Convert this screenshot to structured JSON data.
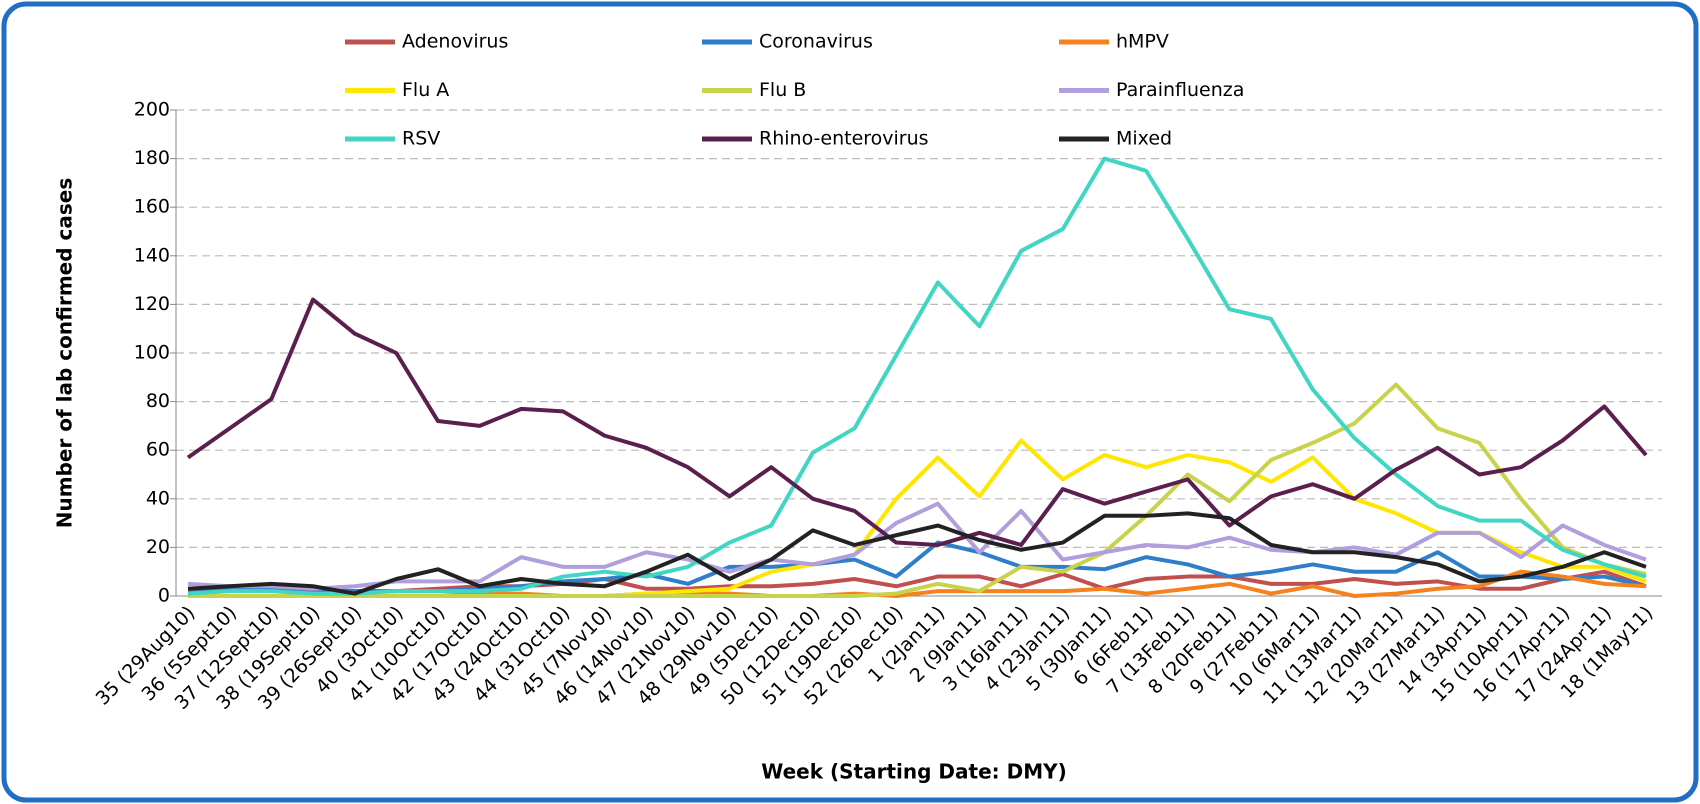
{
  "chart_data": {
    "type": "line",
    "x_label": "Week (Starting Date: DMY)",
    "y_label": "Number of lab confirmed cases",
    "categories": [
      "35 (29Aug10)",
      "36 (5Sept10)",
      "37 (12Sept10)",
      "38 (19Sept10)",
      "39 (26Sept10)",
      "40 (3Oct10)",
      "41 (10Oct10)",
      "42 (17Oct10)",
      "43 (24Oct10)",
      "44 (31Oct10)",
      "45 (7Nov10)",
      "46 (14Nov10)",
      "47 (21Nov10)",
      "48 (29Nov10)",
      "49 (5Dec10)",
      "50 (12Dec10)",
      "51 (19Dec10)",
      "52 (26Dec10)",
      "1 (2Jan11)",
      "2 (9Jan11)",
      "3 (16Jan11)",
      "4 (23Jan11)",
      "5 (30Jan11)",
      "6 (6Feb11)",
      "7 (13Feb11)",
      "8 (20Feb11)",
      "9 (27Feb11)",
      "10 (6Mar11)",
      "11 (13Mar11)",
      "12 (20Mar11)",
      "13 (27Mar11)",
      "14 (3Apr11)",
      "15 (10Apr11)",
      "16 (17Apr11)",
      "17 (24Apr11)",
      "18 (1May11)"
    ],
    "ylim": [
      0,
      200
    ],
    "yticks": [
      0,
      20,
      40,
      60,
      80,
      100,
      120,
      140,
      160,
      180,
      200
    ],
    "grid": true,
    "series": [
      {
        "name": "Adenovirus",
        "color": "#c0504d",
        "values": [
          2,
          3,
          3,
          2,
          2,
          2,
          3,
          4,
          4,
          5,
          7,
          3,
          3,
          4,
          4,
          5,
          7,
          4,
          8,
          8,
          4,
          9,
          3,
          7,
          8,
          8,
          5,
          5,
          7,
          5,
          6,
          3,
          3,
          7,
          10,
          4
        ]
      },
      {
        "name": "Coronavirus",
        "color": "#2e7ec9",
        "values": [
          3,
          3,
          3,
          3,
          2,
          2,
          2,
          3,
          4,
          6,
          7,
          9,
          5,
          12,
          12,
          13,
          15,
          8,
          22,
          18,
          12,
          12,
          11,
          16,
          13,
          8,
          10,
          13,
          10,
          10,
          18,
          8,
          8,
          7,
          8,
          4
        ]
      },
      {
        "name": "hMPV",
        "color": "#f5821f",
        "values": [
          0,
          0,
          0,
          0,
          0,
          0,
          0,
          1,
          1,
          0,
          0,
          1,
          1,
          1,
          0,
          0,
          1,
          0,
          2,
          2,
          2,
          2,
          3,
          1,
          3,
          5,
          1,
          4,
          0,
          1,
          3,
          4,
          10,
          8,
          5,
          4
        ]
      },
      {
        "name": "Flu A",
        "color": "#ffe600",
        "values": [
          0,
          0,
          0,
          0,
          0,
          0,
          0,
          0,
          0,
          0,
          0,
          1,
          2,
          3,
          10,
          13,
          17,
          40,
          57,
          41,
          64,
          48,
          58,
          53,
          58,
          55,
          47,
          57,
          40,
          34,
          26,
          26,
          18,
          12,
          12,
          6
        ]
      },
      {
        "name": "Flu B",
        "color": "#c8d24a",
        "values": [
          0,
          0,
          0,
          0,
          0,
          0,
          0,
          0,
          0,
          0,
          0,
          0,
          0,
          0,
          0,
          0,
          0,
          1,
          5,
          2,
          12,
          10,
          18,
          33,
          50,
          39,
          56,
          63,
          71,
          87,
          69,
          63,
          40,
          20,
          13,
          9
        ]
      },
      {
        "name": "Parainfluenza",
        "color": "#b09fdc",
        "values": [
          5,
          4,
          4,
          3,
          4,
          6,
          6,
          6,
          16,
          12,
          12,
          18,
          15,
          10,
          15,
          13,
          17,
          30,
          38,
          18,
          35,
          15,
          18,
          21,
          20,
          24,
          19,
          18,
          20,
          17,
          26,
          26,
          16,
          29,
          21,
          15
        ]
      },
      {
        "name": "RSV",
        "color": "#40d6c3",
        "values": [
          1,
          2,
          2,
          1,
          1,
          2,
          2,
          2,
          3,
          8,
          10,
          8,
          12,
          22,
          29,
          59,
          69,
          99,
          129,
          111,
          142,
          151,
          180,
          175,
          147,
          118,
          114,
          85,
          65,
          50,
          37,
          31,
          31,
          19,
          13,
          8
        ]
      },
      {
        "name": "Rhino-enterovirus",
        "color": "#5b1f4e",
        "values": [
          57,
          69,
          81,
          122,
          108,
          100,
          72,
          70,
          77,
          76,
          66,
          61,
          53,
          41,
          53,
          40,
          35,
          22,
          21,
          26,
          21,
          44,
          38,
          43,
          48,
          29,
          41,
          46,
          40,
          52,
          61,
          50,
          53,
          64,
          78,
          58
        ]
      },
      {
        "name": "Mixed",
        "color": "#222222",
        "values": [
          3,
          4,
          5,
          4,
          1,
          7,
          11,
          4,
          7,
          5,
          4,
          10,
          17,
          7,
          15,
          27,
          21,
          25,
          29,
          23,
          19,
          22,
          33,
          33,
          34,
          32,
          21,
          18,
          18,
          16,
          13,
          6,
          8,
          12,
          18,
          12
        ]
      }
    ]
  }
}
